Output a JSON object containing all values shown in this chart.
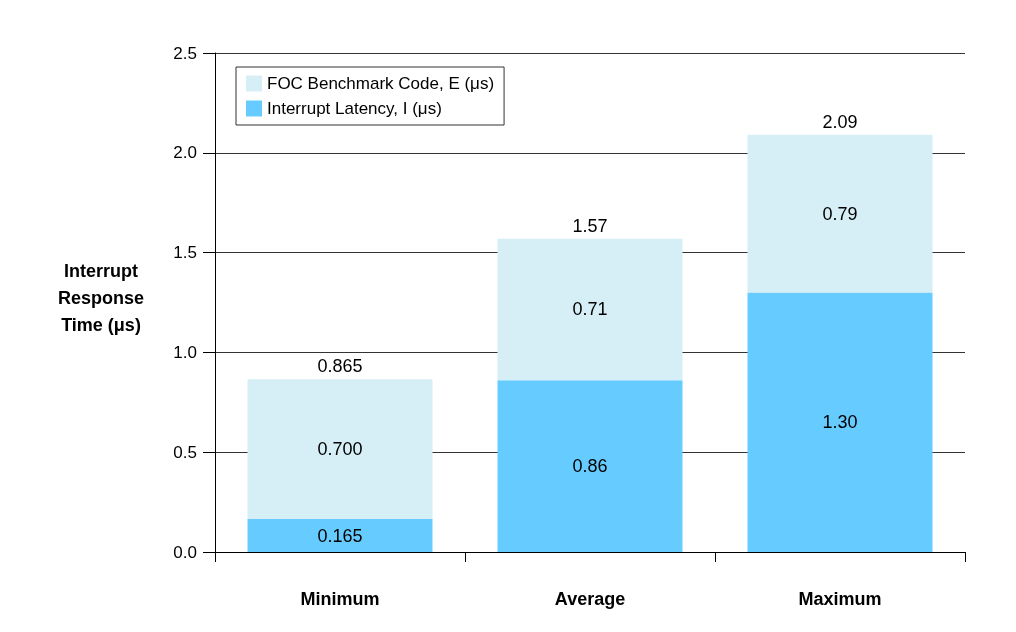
{
  "chart_data": {
    "type": "bar",
    "ylabel": "Interrupt\nResponse\nTime (μs)",
    "categories": [
      "Minimum",
      "Average",
      "Maximum"
    ],
    "stacked": true,
    "series": [
      {
        "name": "Interrupt Latency, I (μs)",
        "color": "#66ccff",
        "values": [
          0.165,
          0.86,
          1.3
        ],
        "value_labels": [
          "0.165",
          "0.86",
          "1.30"
        ]
      },
      {
        "name": "FOC Benchmark Code, E (μs)",
        "color": "#d6eef5",
        "values": [
          0.7,
          0.71,
          0.79
        ],
        "value_labels": [
          "0.700",
          "0.71",
          "0.79"
        ]
      }
    ],
    "totals": [
      "0.865",
      "1.57",
      "2.09"
    ],
    "ylim": [
      0,
      2.5
    ],
    "yticks": [
      {
        "value": 0,
        "label": "0.0"
      },
      {
        "value": 0.5,
        "label": "0.5"
      },
      {
        "value": 1,
        "label": "1.0"
      },
      {
        "value": 1.5,
        "label": "1.5"
      },
      {
        "value": 2,
        "label": "2.0"
      },
      {
        "value": 2.5,
        "label": "2.5"
      }
    ],
    "grid": "y",
    "legend": "top left"
  }
}
